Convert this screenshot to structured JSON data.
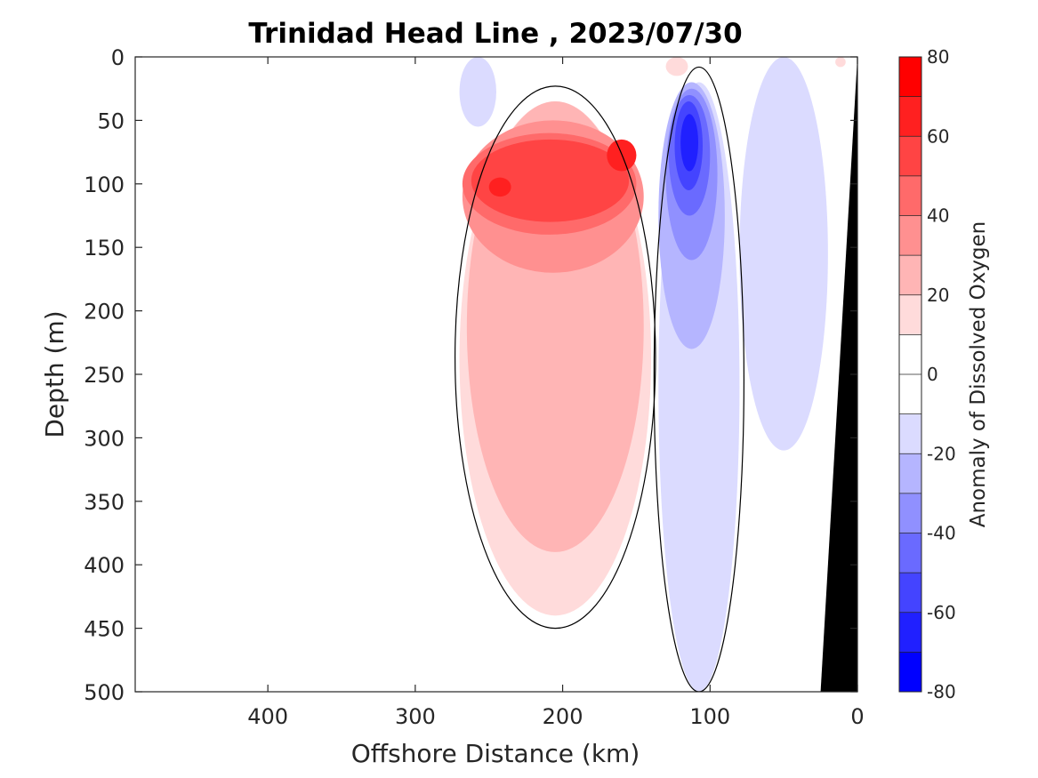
{
  "chart_data": {
    "type": "contour",
    "title": "Trinidad Head Line , 2023/07/30",
    "xlabel": "Offshore Distance (km)",
    "ylabel": "Depth (m)",
    "xlim": [
      490,
      0
    ],
    "ylim": [
      0,
      500
    ],
    "x_reversed": true,
    "y_reversed": true,
    "xticks": [
      400,
      300,
      200,
      100,
      0
    ],
    "yticks": [
      0,
      50,
      100,
      150,
      200,
      250,
      300,
      350,
      400,
      450,
      500
    ],
    "colorbar": {
      "label": "Anomaly of Dissolved Oxygen",
      "range": [
        -80,
        80
      ],
      "ticks": [
        80,
        60,
        40,
        20,
        0,
        -20,
        -40,
        -60,
        -80
      ],
      "levels": [
        -80,
        -70,
        -60,
        -50,
        -40,
        -30,
        -20,
        -10,
        10,
        20,
        30,
        40,
        50,
        60,
        70,
        80
      ],
      "colors_top_to_bottom": [
        "#ff0000",
        "#ff2020",
        "#ff4444",
        "#ff6a6a",
        "#ff9090",
        "#ffb5b5",
        "#ffdbdb",
        "#ffffff",
        "#ffffff",
        "#dbdbff",
        "#b5b5ff",
        "#9090ff",
        "#6a6aff",
        "#4444ff",
        "#2020ff",
        "#0000ff"
      ]
    },
    "anomaly_regions": [
      {
        "sign": "positive",
        "level": 10,
        "x": [
          270,
          140
        ],
        "depth": [
          35,
          440
        ]
      },
      {
        "sign": "positive",
        "level": 20,
        "x": [
          265,
          145
        ],
        "depth": [
          35,
          390
        ]
      },
      {
        "sign": "positive",
        "level": 30,
        "x": [
          268,
          145
        ],
        "depth": [
          50,
          170
        ]
      },
      {
        "sign": "positive",
        "level": 40,
        "x": [
          268,
          150
        ],
        "depth": [
          60,
          140
        ]
      },
      {
        "sign": "positive",
        "level": 50,
        "x": [
          262,
          155
        ],
        "depth": [
          65,
          130
        ]
      },
      {
        "sign": "positive",
        "level": 60,
        "x": [
          250,
          235
        ],
        "depth": [
          95,
          110
        ]
      },
      {
        "sign": "positive",
        "level": 60,
        "x": [
          170,
          150
        ],
        "depth": [
          65,
          90
        ]
      },
      {
        "sign": "negative",
        "level": -10,
        "x": [
          135,
          80
        ],
        "depth": [
          20,
          500
        ]
      },
      {
        "sign": "negative",
        "level": -20,
        "x": [
          135,
          90
        ],
        "depth": [
          20,
          230
        ]
      },
      {
        "sign": "negative",
        "level": -30,
        "x": [
          130,
          95
        ],
        "depth": [
          25,
          160
        ]
      },
      {
        "sign": "negative",
        "level": -40,
        "x": [
          128,
          100
        ],
        "depth": [
          30,
          125
        ]
      },
      {
        "sign": "negative",
        "level": -50,
        "x": [
          124,
          105
        ],
        "depth": [
          35,
          105
        ]
      },
      {
        "sign": "negative",
        "level": -60,
        "x": [
          120,
          108
        ],
        "depth": [
          45,
          90
        ]
      },
      {
        "sign": "negative",
        "level": -10,
        "x": [
          270,
          245
        ],
        "depth": [
          0,
          55
        ]
      },
      {
        "sign": "negative",
        "level": -10,
        "x": [
          80,
          20
        ],
        "depth": [
          0,
          310
        ]
      },
      {
        "sign": "positive",
        "level": 10,
        "x": [
          130,
          115
        ],
        "depth": [
          0,
          15
        ]
      },
      {
        "sign": "positive",
        "level": 10,
        "x": [
          15,
          8
        ],
        "depth": [
          0,
          8
        ]
      }
    ],
    "zero_contour_lines": "black",
    "bathymetry": {
      "color": "#000000",
      "offshore_km_at_surface": 0,
      "offshore_km_at_500m": 25
    }
  }
}
